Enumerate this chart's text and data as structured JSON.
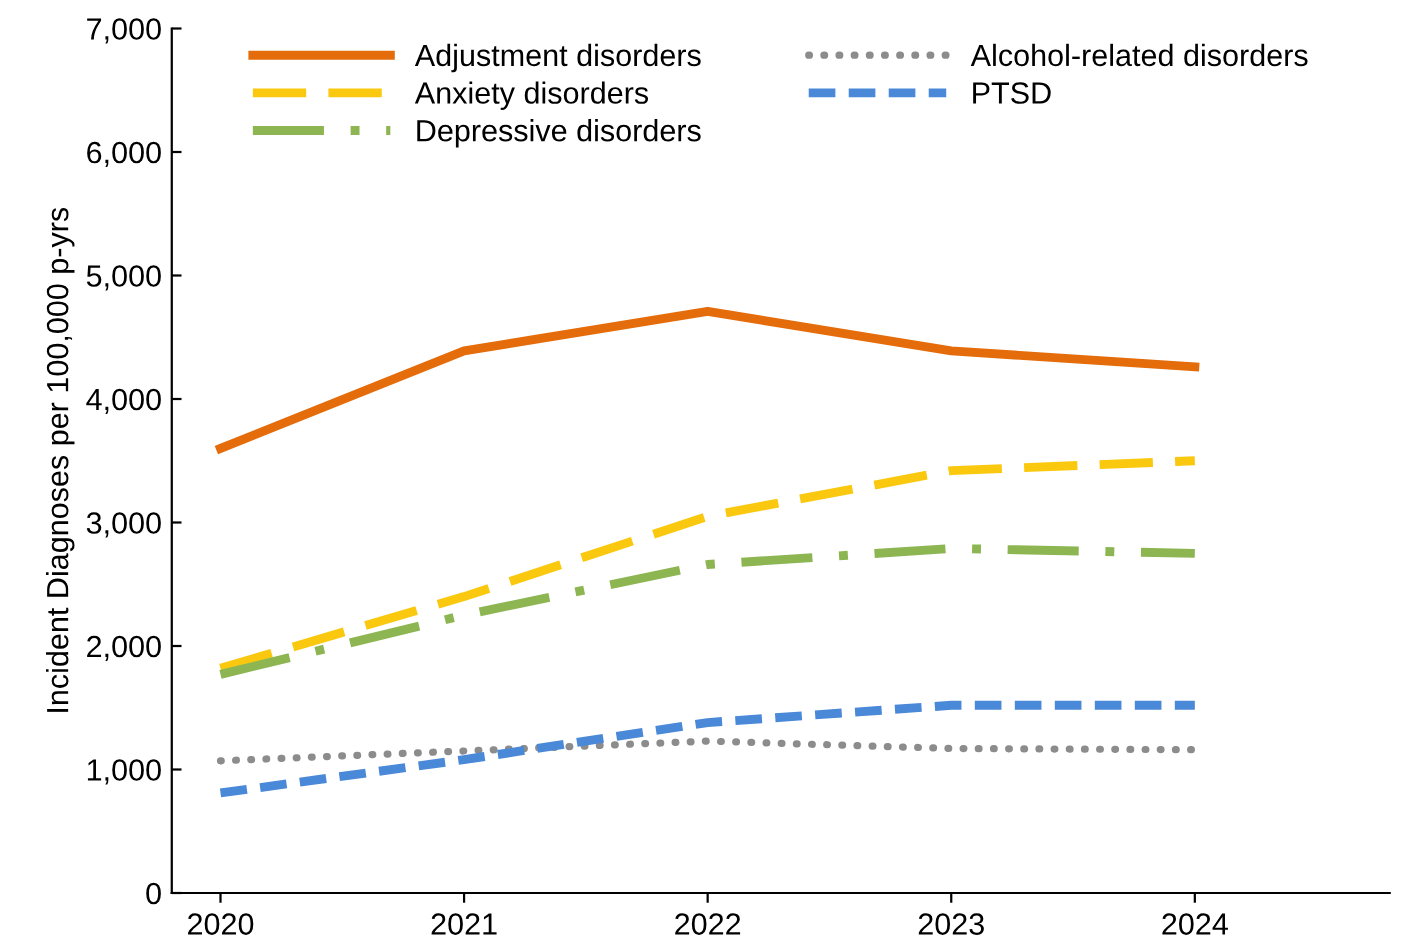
{
  "chart_data": {
    "type": "line",
    "ylabel": "Incident Diagnoses per 100,000 p-yrs",
    "categories": [
      "2020",
      "2021",
      "2022",
      "2023",
      "2024"
    ],
    "series": [
      {
        "name": "Adjustment disorders",
        "color": "#e46c0a",
        "line_style": "solid",
        "values": [
          3600,
          4390,
          4710,
          4390,
          4260
        ]
      },
      {
        "name": "Anxiety disorders",
        "color": "#fac90f",
        "line_style": "longdash",
        "values": [
          1820,
          2400,
          3050,
          3420,
          3500
        ]
      },
      {
        "name": "Depressive disorders",
        "color": "#8db653",
        "line_style": "dashdot",
        "values": [
          1770,
          2250,
          2660,
          2790,
          2750
        ]
      },
      {
        "name": "Alcohol-related disorders",
        "color": "#8c8c8c",
        "line_style": "dotted",
        "values": [
          1070,
          1150,
          1230,
          1170,
          1160
        ]
      },
      {
        "name": "PTSD",
        "color": "#4a88d8",
        "line_style": "dashed",
        "values": [
          810,
          1080,
          1380,
          1520,
          1520
        ]
      }
    ],
    "ylim": [
      0,
      7000
    ],
    "yticks": [
      {
        "value": 0,
        "label": "0"
      },
      {
        "value": 1000,
        "label": "1,000"
      },
      {
        "value": 2000,
        "label": "2,000"
      },
      {
        "value": 3000,
        "label": "3,000"
      },
      {
        "value": 4000,
        "label": "4,000"
      },
      {
        "value": 5000,
        "label": "5,000"
      },
      {
        "value": 6000,
        "label": "6,000"
      },
      {
        "value": 7000,
        "label": "7,000"
      }
    ],
    "grid": false,
    "legend": "top",
    "marker": "none"
  }
}
